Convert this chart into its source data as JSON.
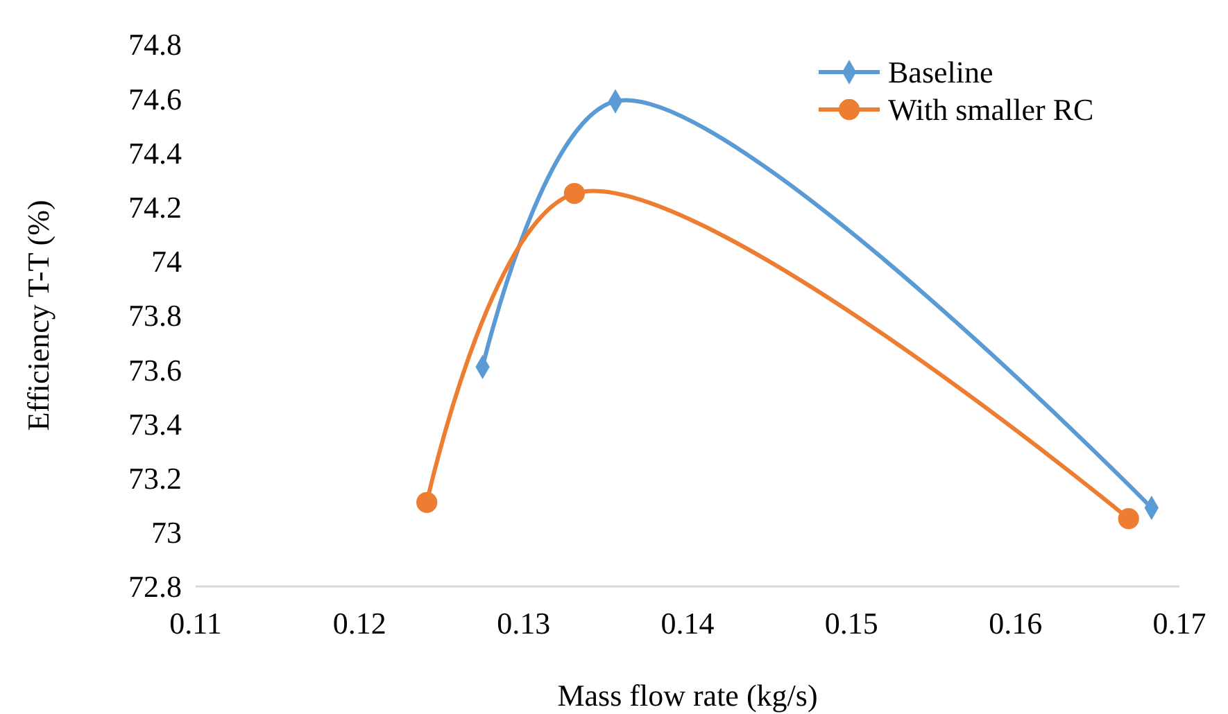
{
  "chart_data": {
    "type": "line",
    "xlabel": "Mass flow rate (kg/s)",
    "ylabel": "Efficiency T-T (%)",
    "xlim": [
      0.11,
      0.17
    ],
    "xticks": [
      0.11,
      0.12,
      0.13,
      0.14,
      0.15,
      0.16,
      0.17
    ],
    "ylim": [
      72.8,
      74.8
    ],
    "yticks": [
      72.8,
      73,
      73.2,
      73.4,
      73.6,
      73.8,
      74,
      74.2,
      74.4,
      74.6,
      74.8
    ],
    "grid": false,
    "legend": "top right",
    "series": [
      {
        "name": "Baseline",
        "color": "#5b9bd5",
        "marker": "diamond",
        "x": [
          0.1275,
          0.1356,
          0.1683
        ],
        "values": [
          73.61,
          74.59,
          73.09
        ]
      },
      {
        "name": "With smaller RC",
        "color": "#ed7d31",
        "marker": "circle",
        "x": [
          0.1241,
          0.1331,
          0.1669
        ],
        "values": [
          73.11,
          74.25,
          73.05
        ]
      }
    ]
  }
}
